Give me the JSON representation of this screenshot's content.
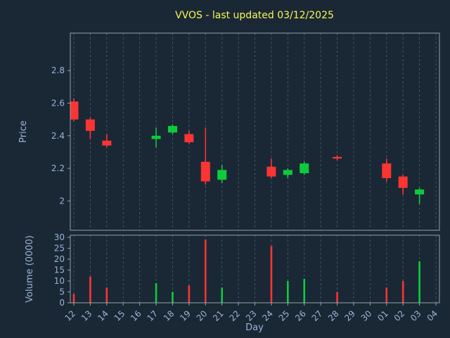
{
  "title": "VVOS - last updated 03/12/2025",
  "colors": {
    "background": "#1a2835",
    "title_text": "#f7f754",
    "axis_text": "#9db2d6",
    "spine": "#a9b4c0",
    "grid": "#8496a8",
    "up": "#0ecb3c",
    "down": "#fb3434"
  },
  "chart_data": {
    "type": "candlestick",
    "title": "VVOS - last updated 03/12/2025",
    "xlabel": "Day",
    "legend": "none",
    "grid": "vertical dashed gridlines at each day, both panels",
    "x_categories": [
      "12",
      "13",
      "14",
      "15",
      "16",
      "17",
      "18",
      "19",
      "20",
      "21",
      "22",
      "23",
      "24",
      "25",
      "26",
      "27",
      "28",
      "29",
      "30",
      "01",
      "02",
      "03",
      "04"
    ],
    "price_panel": {
      "ylabel": "Price",
      "ylim": [
        1.82,
        3.03
      ],
      "yticks": [
        "2",
        "2.2",
        "2.4",
        "2.6",
        "2.8"
      ]
    },
    "volume_panel": {
      "ylabel": "Volume (0000)",
      "ylim": [
        0,
        31
      ],
      "yticks": [
        "0",
        "5",
        "10",
        "15",
        "20",
        "25",
        "30"
      ]
    },
    "ohlcv": [
      {
        "day": "12",
        "open": 2.61,
        "high": 2.63,
        "low": 2.49,
        "close": 2.5,
        "volume": 4
      },
      {
        "day": "13",
        "open": 2.5,
        "high": 2.51,
        "low": 2.38,
        "close": 2.43,
        "volume": 12
      },
      {
        "day": "14",
        "open": 2.37,
        "high": 2.41,
        "low": 2.33,
        "close": 2.34,
        "volume": 7
      },
      {
        "day": "17",
        "open": 2.38,
        "high": 2.45,
        "low": 2.33,
        "close": 2.4,
        "volume": 9
      },
      {
        "day": "18",
        "open": 2.42,
        "high": 2.47,
        "low": 2.41,
        "close": 2.46,
        "volume": 5
      },
      {
        "day": "19",
        "open": 2.41,
        "high": 2.43,
        "low": 2.35,
        "close": 2.36,
        "volume": 8
      },
      {
        "day": "20",
        "open": 2.24,
        "high": 2.45,
        "low": 2.1,
        "close": 2.12,
        "volume": 29
      },
      {
        "day": "21",
        "open": 2.13,
        "high": 2.22,
        "low": 2.11,
        "close": 2.19,
        "volume": 7
      },
      {
        "day": "24",
        "open": 2.21,
        "high": 2.26,
        "low": 2.14,
        "close": 2.15,
        "volume": 26
      },
      {
        "day": "25",
        "open": 2.16,
        "high": 2.2,
        "low": 2.14,
        "close": 2.19,
        "volume": 10
      },
      {
        "day": "26",
        "open": 2.17,
        "high": 2.24,
        "low": 2.16,
        "close": 2.23,
        "volume": 11
      },
      {
        "day": "28",
        "open": 2.27,
        "high": 2.28,
        "low": 2.25,
        "close": 2.26,
        "volume": 5
      },
      {
        "day": "01",
        "open": 2.23,
        "high": 2.26,
        "low": 2.12,
        "close": 2.14,
        "volume": 7
      },
      {
        "day": "02",
        "open": 2.15,
        "high": 2.16,
        "low": 2.04,
        "close": 2.08,
        "volume": 10
      },
      {
        "day": "03",
        "open": 2.04,
        "high": 2.08,
        "low": 1.98,
        "close": 2.07,
        "volume": 19
      }
    ]
  }
}
